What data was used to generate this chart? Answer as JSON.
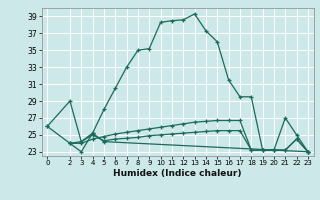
{
  "title": "",
  "xlabel": "Humidex (Indice chaleur)",
  "bg_color": "#cce8e8",
  "grid_color": "#ffffff",
  "line_color": "#1a6b5a",
  "ylim": [
    22.5,
    40
  ],
  "xlim": [
    -0.5,
    23.5
  ],
  "yticks": [
    23,
    25,
    27,
    29,
    31,
    33,
    35,
    37,
    39
  ],
  "xticks": [
    0,
    2,
    3,
    4,
    5,
    6,
    7,
    8,
    9,
    10,
    11,
    12,
    13,
    14,
    15,
    16,
    17,
    18,
    19,
    20,
    21,
    22,
    23
  ],
  "series1": [
    [
      0,
      26.0
    ],
    [
      2,
      29.0
    ],
    [
      3,
      24.2
    ],
    [
      4,
      25.2
    ],
    [
      5,
      28.0
    ],
    [
      6,
      30.5
    ],
    [
      7,
      33.0
    ],
    [
      8,
      35.0
    ],
    [
      9,
      35.2
    ],
    [
      10,
      38.3
    ],
    [
      11,
      38.5
    ],
    [
      12,
      38.6
    ],
    [
      13,
      39.3
    ],
    [
      14,
      37.3
    ],
    [
      15,
      36.0
    ],
    [
      16,
      31.5
    ],
    [
      17,
      29.5
    ],
    [
      18,
      29.5
    ],
    [
      19,
      23.2
    ],
    [
      20,
      23.2
    ],
    [
      21,
      27.0
    ],
    [
      22,
      25.0
    ],
    [
      23,
      23.0
    ]
  ],
  "series2": [
    [
      0,
      26.0
    ],
    [
      2,
      24.0
    ],
    [
      3,
      24.0
    ],
    [
      4,
      24.5
    ],
    [
      5,
      24.8
    ],
    [
      6,
      25.1
    ],
    [
      7,
      25.3
    ],
    [
      8,
      25.5
    ],
    [
      9,
      25.7
    ],
    [
      10,
      25.9
    ],
    [
      11,
      26.1
    ],
    [
      12,
      26.3
    ],
    [
      13,
      26.5
    ],
    [
      14,
      26.6
    ],
    [
      15,
      26.7
    ],
    [
      16,
      26.7
    ],
    [
      17,
      26.7
    ],
    [
      18,
      23.2
    ],
    [
      19,
      23.2
    ],
    [
      20,
      23.2
    ],
    [
      21,
      23.2
    ],
    [
      22,
      24.5
    ],
    [
      23,
      23.0
    ]
  ],
  "series3": [
    [
      2,
      24.0
    ],
    [
      3,
      23.0
    ],
    [
      4,
      25.2
    ],
    [
      5,
      24.2
    ],
    [
      23,
      23.0
    ]
  ],
  "series4": [
    [
      2,
      24.0
    ],
    [
      3,
      24.2
    ],
    [
      4,
      25.0
    ],
    [
      5,
      24.3
    ],
    [
      6,
      24.5
    ],
    [
      7,
      24.6
    ],
    [
      8,
      24.7
    ],
    [
      9,
      24.9
    ],
    [
      10,
      25.0
    ],
    [
      11,
      25.1
    ],
    [
      12,
      25.2
    ],
    [
      13,
      25.3
    ],
    [
      14,
      25.4
    ],
    [
      15,
      25.5
    ],
    [
      16,
      25.5
    ],
    [
      17,
      25.5
    ],
    [
      18,
      23.2
    ],
    [
      19,
      23.2
    ],
    [
      20,
      23.2
    ],
    [
      21,
      23.2
    ],
    [
      22,
      24.5
    ],
    [
      23,
      23.0
    ]
  ]
}
